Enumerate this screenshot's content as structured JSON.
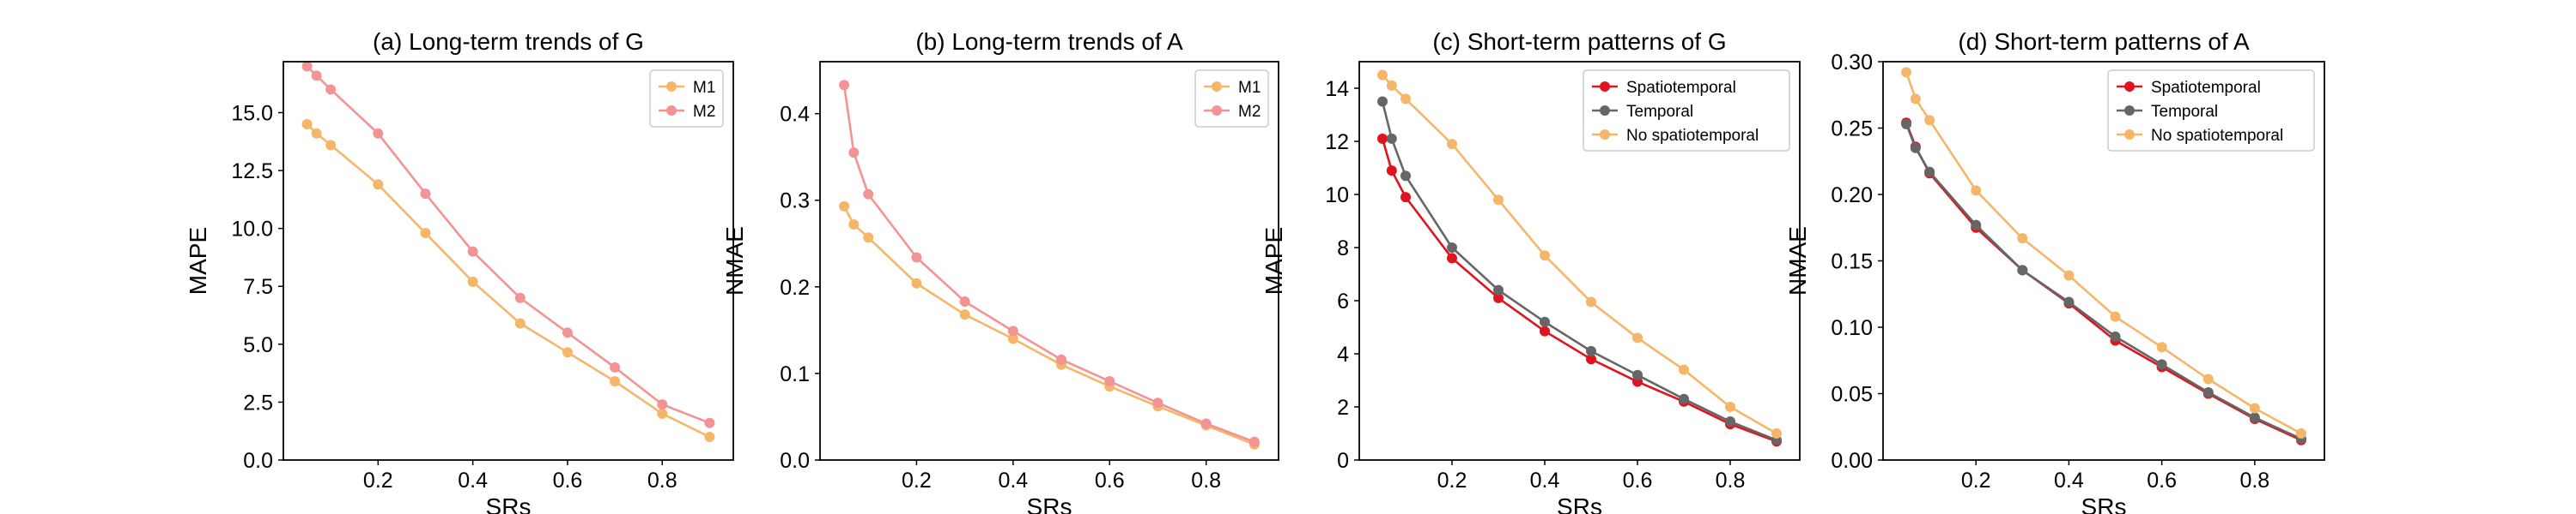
{
  "chart_data": [
    {
      "type": "line",
      "title": "(a) Long-term trends of G",
      "xlabel": "SRs",
      "ylabel": "MAPE",
      "xlim": [
        0.0,
        0.95
      ],
      "ylim": [
        0.0,
        17.2
      ],
      "xticks": [
        0.2,
        0.4,
        0.6,
        0.8
      ],
      "xtick_labels": [
        "0.2",
        "0.4",
        "0.6",
        "0.8"
      ],
      "yticks": [
        0.0,
        2.5,
        5.0,
        7.5,
        10.0,
        12.5,
        15.0
      ],
      "ytick_labels": [
        "0.0",
        "2.5",
        "5.0",
        "7.5",
        "10.0",
        "12.5",
        "15.0"
      ],
      "legend_position": "top-right",
      "series": [
        {
          "name": "M1",
          "color": "#f6b66a",
          "x": [
            0.05,
            0.07,
            0.1,
            0.2,
            0.3,
            0.4,
            0.5,
            0.6,
            0.7,
            0.8,
            0.9
          ],
          "y": [
            14.5,
            14.1,
            13.6,
            11.9,
            9.8,
            7.7,
            5.9,
            4.65,
            3.4,
            2.0,
            1.0
          ]
        },
        {
          "name": "M2",
          "color": "#f49393",
          "x": [
            0.05,
            0.07,
            0.1,
            0.2,
            0.3,
            0.4,
            0.5,
            0.6,
            0.7,
            0.8,
            0.9
          ],
          "y": [
            17.0,
            16.6,
            16.0,
            14.1,
            11.5,
            9.0,
            7.0,
            5.5,
            4.0,
            2.4,
            1.6
          ]
        }
      ]
    },
    {
      "type": "line",
      "title": "(b) Long-term trends of A",
      "xlabel": "SRs",
      "ylabel": "NMAE",
      "xlim": [
        0.0,
        0.95
      ],
      "ylim": [
        0.0,
        0.46
      ],
      "xticks": [
        0.2,
        0.4,
        0.6,
        0.8
      ],
      "xtick_labels": [
        "0.2",
        "0.4",
        "0.6",
        "0.8"
      ],
      "yticks": [
        0.0,
        0.1,
        0.2,
        0.3,
        0.4
      ],
      "ytick_labels": [
        "0.0",
        "0.1",
        "0.2",
        "0.3",
        "0.4"
      ],
      "legend_position": "top-right",
      "series": [
        {
          "name": "M1",
          "color": "#f6b66a",
          "x": [
            0.05,
            0.07,
            0.1,
            0.2,
            0.3,
            0.4,
            0.5,
            0.6,
            0.7,
            0.8,
            0.9
          ],
          "y": [
            0.293,
            0.272,
            0.257,
            0.204,
            0.168,
            0.14,
            0.11,
            0.085,
            0.062,
            0.04,
            0.018
          ]
        },
        {
          "name": "M2",
          "color": "#f49393",
          "x": [
            0.05,
            0.07,
            0.1,
            0.2,
            0.3,
            0.4,
            0.5,
            0.6,
            0.7,
            0.8,
            0.9
          ],
          "y": [
            0.433,
            0.355,
            0.307,
            0.234,
            0.183,
            0.149,
            0.116,
            0.091,
            0.066,
            0.042,
            0.021
          ]
        }
      ]
    },
    {
      "type": "line",
      "title": "(c) Short-term patterns of G",
      "xlabel": "SRs",
      "ylabel": "MAPE",
      "xlim": [
        0.0,
        0.95
      ],
      "ylim": [
        0.0,
        15.0
      ],
      "xticks": [
        0.2,
        0.4,
        0.6,
        0.8
      ],
      "xtick_labels": [
        "0.2",
        "0.4",
        "0.6",
        "0.8"
      ],
      "yticks": [
        0,
        2,
        4,
        6,
        8,
        10,
        12,
        14
      ],
      "ytick_labels": [
        "0",
        "2",
        "4",
        "6",
        "8",
        "10",
        "12",
        "14"
      ],
      "legend_position": "top-right",
      "series": [
        {
          "name": "Spatiotemporal",
          "color": "#e0141e",
          "x": [
            0.05,
            0.07,
            0.1,
            0.2,
            0.3,
            0.4,
            0.5,
            0.6,
            0.7,
            0.8,
            0.9
          ],
          "y": [
            12.1,
            10.9,
            9.9,
            7.6,
            6.1,
            4.85,
            3.8,
            2.95,
            2.2,
            1.35,
            0.7
          ]
        },
        {
          "name": "Temporal",
          "color": "#666666",
          "x": [
            0.05,
            0.07,
            0.1,
            0.2,
            0.3,
            0.4,
            0.5,
            0.6,
            0.7,
            0.8,
            0.9
          ],
          "y": [
            13.5,
            12.1,
            10.7,
            8.0,
            6.4,
            5.2,
            4.1,
            3.2,
            2.3,
            1.45,
            0.75
          ]
        },
        {
          "name": "No spatiotemporal",
          "color": "#f6b66a",
          "x": [
            0.05,
            0.07,
            0.1,
            0.2,
            0.3,
            0.4,
            0.5,
            0.6,
            0.7,
            0.8,
            0.9
          ],
          "y": [
            14.5,
            14.1,
            13.6,
            11.9,
            9.8,
            7.7,
            5.95,
            4.6,
            3.4,
            2.0,
            1.0
          ]
        }
      ]
    },
    {
      "type": "line",
      "title": "(d) Short-term patterns of A",
      "xlabel": "SRs",
      "ylabel": "NMAE",
      "xlim": [
        0.0,
        0.95
      ],
      "ylim": [
        0.0,
        0.3
      ],
      "xticks": [
        0.2,
        0.4,
        0.6,
        0.8
      ],
      "xtick_labels": [
        "0.2",
        "0.4",
        "0.6",
        "0.8"
      ],
      "yticks": [
        0.0,
        0.05,
        0.1,
        0.15,
        0.2,
        0.25,
        0.3
      ],
      "ytick_labels": [
        "0.00",
        "0.05",
        "0.10",
        "0.15",
        "0.20",
        "0.25",
        "0.30"
      ],
      "legend_position": "top-right",
      "series": [
        {
          "name": "Spatiotemporal",
          "color": "#e0141e",
          "x": [
            0.05,
            0.07,
            0.1,
            0.2,
            0.3,
            0.4,
            0.5,
            0.6,
            0.7,
            0.8,
            0.9
          ],
          "y": [
            0.254,
            0.236,
            0.216,
            0.175,
            0.143,
            0.118,
            0.09,
            0.07,
            0.05,
            0.031,
            0.015
          ]
        },
        {
          "name": "Temporal",
          "color": "#666666",
          "x": [
            0.05,
            0.07,
            0.1,
            0.2,
            0.3,
            0.4,
            0.5,
            0.6,
            0.7,
            0.8,
            0.9
          ],
          "y": [
            0.253,
            0.235,
            0.217,
            0.177,
            0.143,
            0.119,
            0.093,
            0.072,
            0.051,
            0.032,
            0.016
          ]
        },
        {
          "name": "No spatiotemporal",
          "color": "#f6b66a",
          "x": [
            0.05,
            0.07,
            0.1,
            0.2,
            0.3,
            0.4,
            0.5,
            0.6,
            0.7,
            0.8,
            0.9
          ],
          "y": [
            0.292,
            0.272,
            0.256,
            0.203,
            0.167,
            0.139,
            0.108,
            0.085,
            0.061,
            0.039,
            0.02
          ]
        }
      ]
    }
  ]
}
